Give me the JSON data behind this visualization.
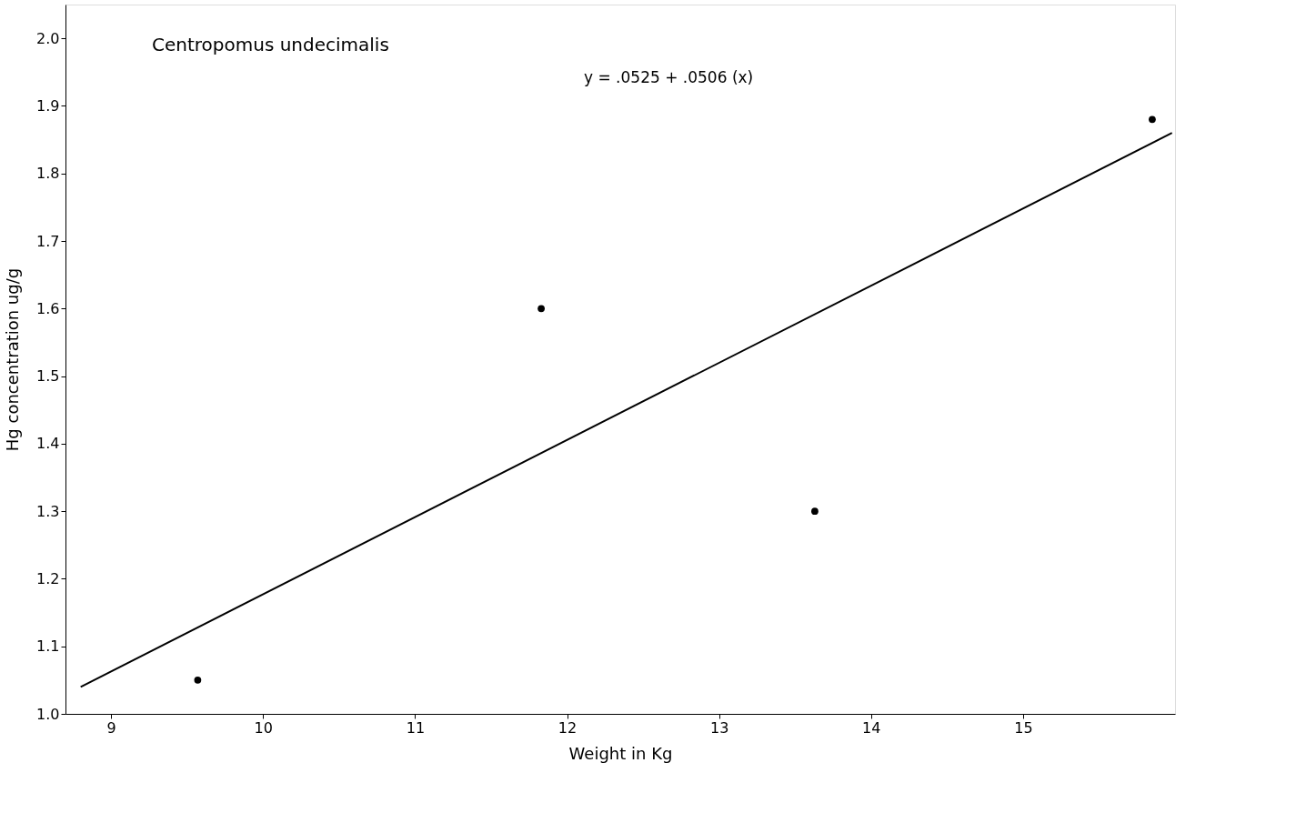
{
  "chart_data": {
    "type": "scatter",
    "xlabel": "Weight in Kg",
    "ylabel": "Hg concentration ug/g",
    "annotations": [
      "Centropomus undecimalis",
      "y = .0525 + .0506 (x)"
    ],
    "x": [
      9.57,
      11.83,
      13.63,
      15.85
    ],
    "series": [
      {
        "color": "#000000",
        "values": [
          1.05,
          1.6,
          1.3,
          1.88
        ],
        "marker": "circle"
      },
      {
        "type": "line",
        "color": "#000000",
        "x": [
          8.8,
          15.98
        ],
        "values": [
          1.04,
          1.86
        ],
        "line_style": "solid"
      }
    ],
    "xlim": [
      8.7,
      16.0
    ],
    "ylim": [
      1.0,
      2.05
    ],
    "xticks": [
      9,
      10,
      11,
      12,
      13,
      14,
      15
    ],
    "yticks": [
      {
        "value": 1.0,
        "label": "1.0"
      },
      1.1,
      1.2,
      1.3,
      1.4,
      1.5,
      1.6,
      1.7,
      1.8,
      1.9,
      {
        "value": 2.0,
        "label": "2.0"
      }
    ],
    "grid": false
  }
}
